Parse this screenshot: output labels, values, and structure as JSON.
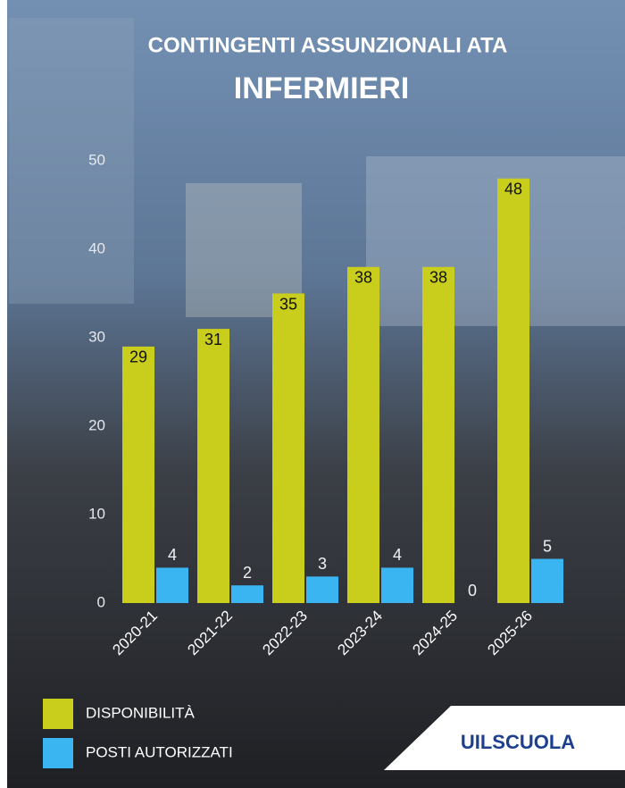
{
  "chart_data": {
    "type": "bar",
    "title": "CONTINGENTI ASSUNZIONALI ATA",
    "subtitle": "INFERMIERI",
    "categories": [
      "2020-21",
      "2021-22",
      "2022-23",
      "2023-24",
      "2024-25",
      "2025-26"
    ],
    "series": [
      {
        "name": "DISPONIBILITÀ",
        "color": "#c9cd1c",
        "values": [
          29,
          31,
          35,
          38,
          38,
          48
        ]
      },
      {
        "name": "POSTI AUTORIZZATI",
        "color": "#3ab5f2",
        "values": [
          4,
          2,
          3,
          4,
          0,
          5
        ]
      }
    ],
    "ylim": [
      0,
      50
    ],
    "yticks": [
      0,
      10,
      20,
      30,
      40,
      50
    ],
    "grid": false,
    "legend": "bottom-left"
  },
  "brand": "UILSCUOLA"
}
